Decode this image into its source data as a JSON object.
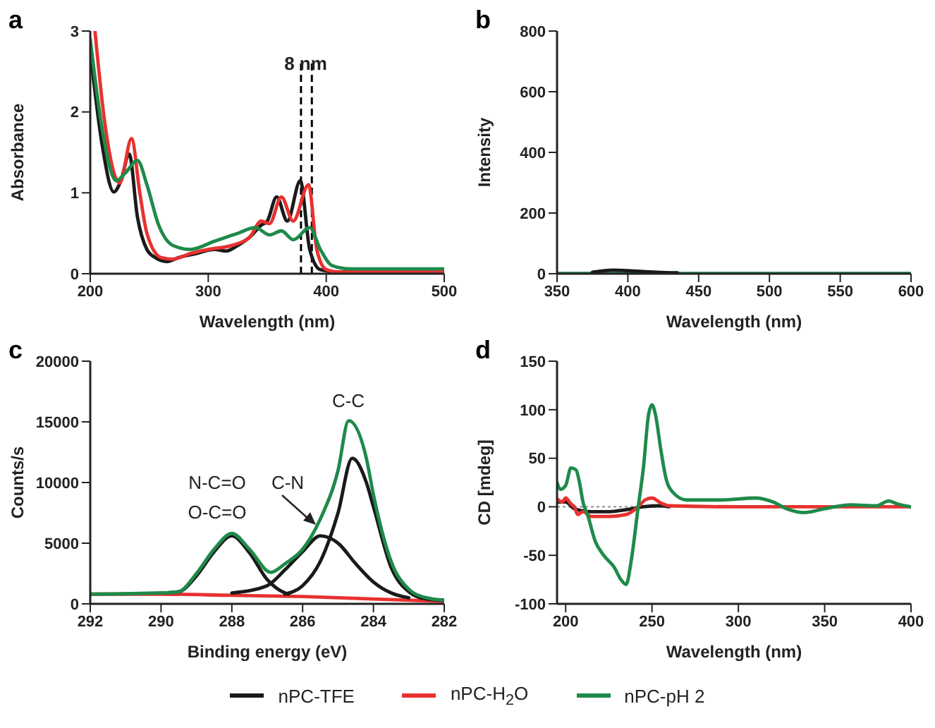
{
  "chart_data": [
    {
      "type": "line",
      "title": "a",
      "xlabel": "Wavelength (nm)",
      "ylabel": "Absorbance",
      "xlim": [
        200,
        500
      ],
      "xticks": [
        200,
        300,
        400,
        500
      ],
      "ylim": [
        0,
        3
      ],
      "yticks": [
        0,
        1,
        2,
        3
      ],
      "grid": false,
      "legend": "bottom",
      "marker": "none",
      "line_style": "solid",
      "annotations": [
        {
          "text": "8 nm",
          "x": 382.6,
          "y": 2.6
        }
      ],
      "ref_lines": [
        {
          "axis": "x",
          "value": 378.6,
          "color": "#000000",
          "line_style": "dashed"
        },
        {
          "axis": "x",
          "value": 387.8,
          "color": "#000000",
          "line_style": "dashed"
        }
      ],
      "series": [
        {
          "name": "nPC-TFE",
          "color": "#1a1a1a",
          "x": [
            200,
            210,
            220,
            226,
            233,
            240,
            248,
            255,
            265,
            275,
            290,
            305,
            315,
            325,
            335,
            345,
            350,
            358,
            367,
            378,
            386,
            395,
            410,
            500
          ],
          "values": [
            2.75,
            1.6,
            1.01,
            1.15,
            1.48,
            0.7,
            0.3,
            0.2,
            0.15,
            0.2,
            0.25,
            0.3,
            0.28,
            0.35,
            0.45,
            0.6,
            0.65,
            0.95,
            0.65,
            1.15,
            0.3,
            0.05,
            0.02,
            0.02
          ]
        },
        {
          "name": "nPC-H$_{2}$O",
          "color": "#e8312f",
          "x": [
            204,
            212,
            225,
            235,
            242,
            248,
            260,
            270,
            285,
            300,
            320,
            335,
            345,
            352,
            362,
            372,
            385,
            392,
            400,
            410,
            500
          ],
          "values": [
            3.0,
            1.9,
            1.12,
            1.67,
            1.0,
            0.5,
            0.2,
            0.18,
            0.25,
            0.3,
            0.35,
            0.45,
            0.65,
            0.62,
            0.95,
            0.65,
            1.1,
            0.3,
            0.05,
            0.02,
            0.02
          ]
        },
        {
          "name": "nPC-pH 2",
          "color": "#1e8a4a",
          "x": [
            200,
            210,
            222,
            230,
            240,
            248,
            258,
            270,
            285,
            305,
            325,
            340,
            352,
            362,
            372,
            386,
            395,
            405,
            420,
            500
          ],
          "values": [
            2.9,
            1.8,
            1.15,
            1.25,
            1.4,
            1.1,
            0.6,
            0.35,
            0.3,
            0.4,
            0.5,
            0.57,
            0.48,
            0.53,
            0.42,
            0.57,
            0.3,
            0.1,
            0.06,
            0.06
          ]
        }
      ]
    },
    {
      "type": "line",
      "title": "b",
      "xlabel": "Wavelength (nm)",
      "ylabel": "Intensity",
      "xlim": [
        350,
        600
      ],
      "xticks": [
        350,
        400,
        450,
        500,
        550,
        600
      ],
      "ylim": [
        0,
        800
      ],
      "yticks": [
        0,
        200,
        400,
        600,
        800
      ],
      "grid": false,
      "legend": "bottom",
      "marker": "none",
      "line_style": "solid",
      "series": [
        {
          "name": "nPC-pH 2",
          "color": "#1e8a4a",
          "x": [
            350,
            600
          ],
          "values": [
            1,
            1
          ]
        },
        {
          "name": "nPC-TFE",
          "color": "#1a1a1a",
          "x": [
            375,
            390,
            400,
            420,
            435
          ],
          "values": [
            5,
            12,
            10,
            5,
            3
          ]
        }
      ]
    },
    {
      "type": "line",
      "title": "c",
      "xlabel": "Binding energy (eV)",
      "ylabel": "Counts/s",
      "xlim": [
        292,
        282
      ],
      "xticks": [
        292,
        290,
        288,
        286,
        284,
        282
      ],
      "ylim": [
        0,
        20000
      ],
      "yticks": [
        0,
        5000,
        10000,
        15000,
        20000
      ],
      "grid": false,
      "legend": false,
      "marker": "none",
      "line_style": "solid",
      "annotations": [
        "N-C=O",
        "O-C=O",
        "C-N",
        "C-C"
      ],
      "series": [
        {
          "color": "#e8312f",
          "x": [
            292,
            290,
            288,
            286,
            284,
            282
          ],
          "values": [
            800,
            800,
            700,
            600,
            400,
            200
          ]
        },
        {
          "color": "#1a1a1a",
          "x": [
            290,
            289.5,
            289,
            288.5,
            288,
            287.5,
            287,
            286.5,
            286.4
          ],
          "values": [
            900,
            1000,
            2300,
            4300,
            5600,
            4200,
            2000,
            900,
            800
          ]
        },
        {
          "color": "#1a1a1a",
          "x": [
            288,
            287,
            286.5,
            286,
            285.5,
            285,
            284.5,
            284,
            283.5,
            283
          ],
          "values": [
            900,
            1500,
            2800,
            4300,
            5600,
            5000,
            3300,
            1800,
            900,
            500
          ]
        },
        {
          "color": "#1a1a1a",
          "x": [
            286.5,
            286,
            285.5,
            285,
            284.6,
            284.2,
            284,
            283.5,
            283,
            282.5,
            282
          ],
          "values": [
            800,
            1500,
            3500,
            7500,
            12000,
            10000,
            8000,
            3000,
            1000,
            400,
            300
          ]
        },
        {
          "color": "#1e8a4a",
          "x": [
            292,
            290,
            289.5,
            289,
            288.5,
            288,
            287.5,
            286.9,
            286.5,
            286,
            285.5,
            285,
            284.7,
            284.2,
            284,
            283.5,
            283,
            282.5,
            282
          ],
          "values": [
            800,
            900,
            1000,
            2500,
            4500,
            5800,
            4500,
            2600,
            3300,
            4500,
            7000,
            11000,
            15100,
            12000,
            9000,
            3500,
            1200,
            500,
            300
          ]
        }
      ]
    },
    {
      "type": "line",
      "title": "d",
      "xlabel": "Wavelength (nm)",
      "ylabel": "CD [mdeg]",
      "xlim": [
        195,
        400
      ],
      "xticks": [
        200,
        250,
        300,
        350,
        400
      ],
      "ylim": [
        -100,
        150
      ],
      "yticks": [
        -100,
        -50,
        0,
        50,
        100,
        150
      ],
      "grid": false,
      "legend": "bottom",
      "marker": "none",
      "line_style": "solid",
      "ref_lines": [
        {
          "axis": "y",
          "value": 0,
          "color": "#999999",
          "line_style": "dotted"
        }
      ],
      "series": [
        {
          "name": "nPC-TFE",
          "color": "#1a1a1a",
          "x": [
            195,
            200,
            205,
            215,
            225,
            235,
            245,
            255,
            260
          ],
          "values": [
            5,
            5,
            -2,
            -5,
            -5,
            -3,
            0,
            1,
            0
          ]
        },
        {
          "name": "nPC-H$_{2}$O",
          "color": "#e8312f",
          "x": [
            195,
            198,
            200,
            203,
            205,
            207,
            210,
            215,
            225,
            235,
            242,
            246,
            250,
            255,
            260,
            300,
            400
          ],
          "values": [
            8,
            5,
            9,
            3,
            0,
            -8,
            -5,
            -10,
            -10,
            -8,
            0,
            7,
            9,
            4,
            1,
            0,
            0
          ]
        },
        {
          "name": "nPC-pH 2",
          "color": "#1e8a4a",
          "x": [
            195,
            197,
            200,
            203,
            206,
            208,
            210,
            213,
            217,
            222,
            228,
            232,
            235,
            238,
            242,
            245,
            248,
            250,
            252,
            255,
            258,
            262,
            270,
            290,
            310,
            320,
            328,
            338,
            350,
            365,
            380,
            387,
            392,
            400
          ],
          "values": [
            25,
            18,
            22,
            40,
            38,
            25,
            5,
            -10,
            -35,
            -50,
            -62,
            -75,
            -80,
            -55,
            0,
            40,
            95,
            105,
            95,
            60,
            30,
            15,
            7,
            7,
            9,
            5,
            -2,
            -6,
            -2,
            2,
            1,
            6,
            3,
            0
          ]
        }
      ]
    }
  ]
}
